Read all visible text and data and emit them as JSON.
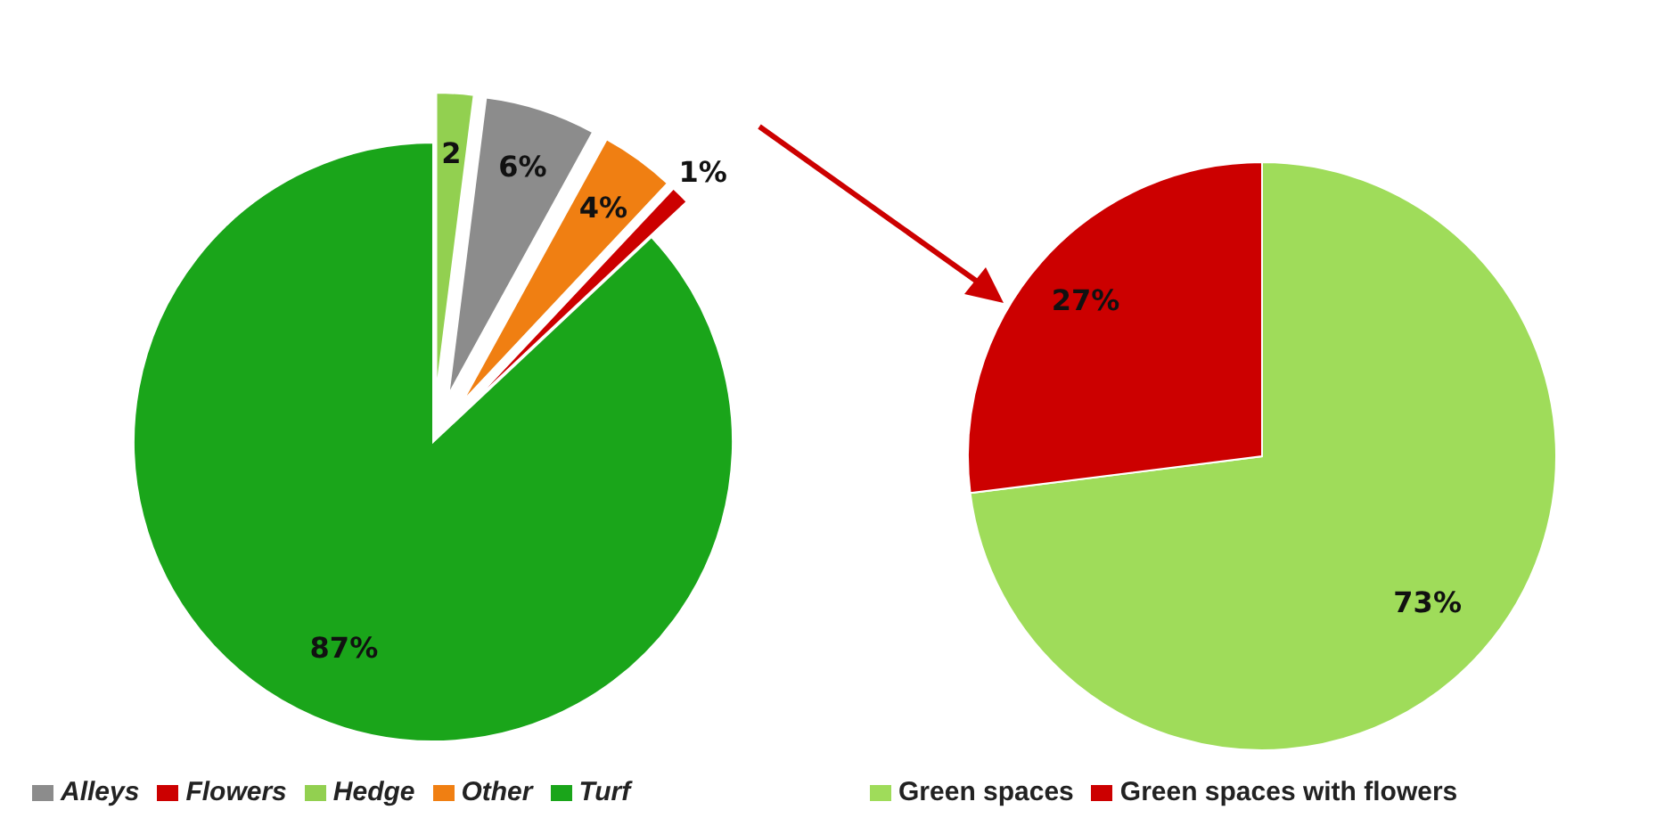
{
  "chart_data": [
    {
      "type": "pie",
      "categories": [
        "Hedge",
        "Alleys",
        "Other",
        "Flowers",
        "Turf"
      ],
      "values": [
        2,
        6,
        4,
        1,
        87
      ],
      "colors": [
        "#92d050",
        "#8c8c8c",
        "#f07f12",
        "#cc0000",
        "#1aa51a"
      ],
      "value_labels": [
        "2",
        "6%",
        "4%",
        "1%",
        "87%"
      ],
      "legend": "bottom"
    },
    {
      "type": "pie",
      "categories": [
        "Green spaces",
        "Green spaces with flowers"
      ],
      "values": [
        73,
        27
      ],
      "colors": [
        "#9fdc5a",
        "#cc0000"
      ],
      "value_labels": [
        "73%",
        "27%"
      ],
      "legend": "bottom"
    }
  ]
}
